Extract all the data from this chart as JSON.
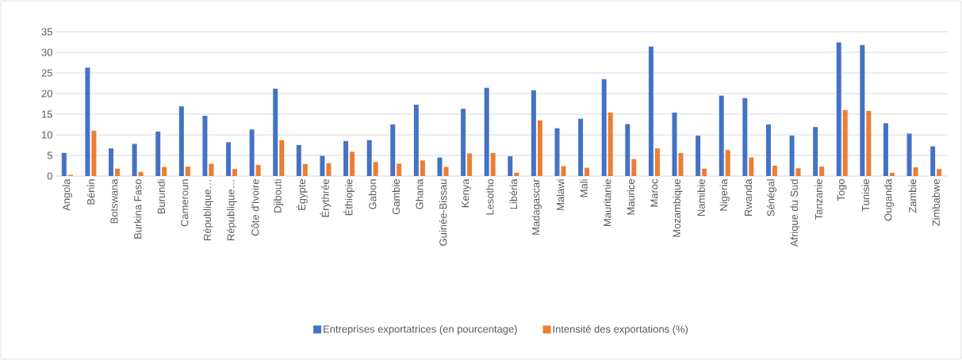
{
  "chart_data": {
    "type": "bar",
    "categories": [
      "Angola",
      "Bénin",
      "Botswana",
      "Burkina Faso",
      "Burundi",
      "Cameroun",
      "République…",
      "République…",
      "Côte d'Ivoire",
      "Djibouti",
      "Égypte",
      "Érythrée",
      "Éthiopie",
      "Gabon",
      "Gambie",
      "Ghana",
      "Guinée-Bissau",
      "Kenya",
      "Lesotho",
      "Libéria",
      "Madagascar",
      "Malawi",
      "Mali",
      "Mauritanie",
      "Maurice",
      "Maroc",
      "Mozambique",
      "Namibie",
      "Nigeria",
      "Rwanda",
      "Sénégal",
      "Afrique du Sud",
      "Tanzanie",
      "Togo",
      "Tunisie",
      "Ouganda",
      "Zambie",
      "Zimbabwe"
    ],
    "series": [
      {
        "name": "Entreprises exportatrices (en pourcentage)",
        "color": "#4472c4",
        "values": [
          5.6,
          26.3,
          6.7,
          7.8,
          10.8,
          16.9,
          14.6,
          8.2,
          11.3,
          21.2,
          7.5,
          4.9,
          8.5,
          8.7,
          12.5,
          17.3,
          4.5,
          16.3,
          21.4,
          4.8,
          20.8,
          11.6,
          13.9,
          23.5,
          12.6,
          31.4,
          15.4,
          9.8,
          19.5,
          18.9,
          12.5,
          9.8,
          11.9,
          32.4,
          31.8,
          12.8,
          10.3,
          7.2
        ]
      },
      {
        "name": "Intensité des exportations (%)",
        "color": "#ed7d31",
        "values": [
          0.3,
          11.0,
          1.8,
          1.0,
          2.2,
          2.3,
          3.0,
          1.7,
          2.7,
          8.7,
          2.9,
          3.1,
          5.9,
          3.4,
          3.0,
          3.8,
          2.2,
          5.5,
          5.6,
          0.8,
          13.5,
          2.4,
          2.0,
          15.4,
          4.1,
          6.7,
          5.6,
          1.8,
          6.3,
          4.5,
          2.5,
          1.9,
          2.3,
          16.0,
          15.8,
          0.8,
          2.1,
          1.7
        ]
      }
    ],
    "ylim": [
      0,
      35
    ],
    "yticks": [
      0,
      5,
      10,
      15,
      20,
      25,
      30,
      35
    ],
    "grid": "y",
    "legend": "bottom"
  }
}
